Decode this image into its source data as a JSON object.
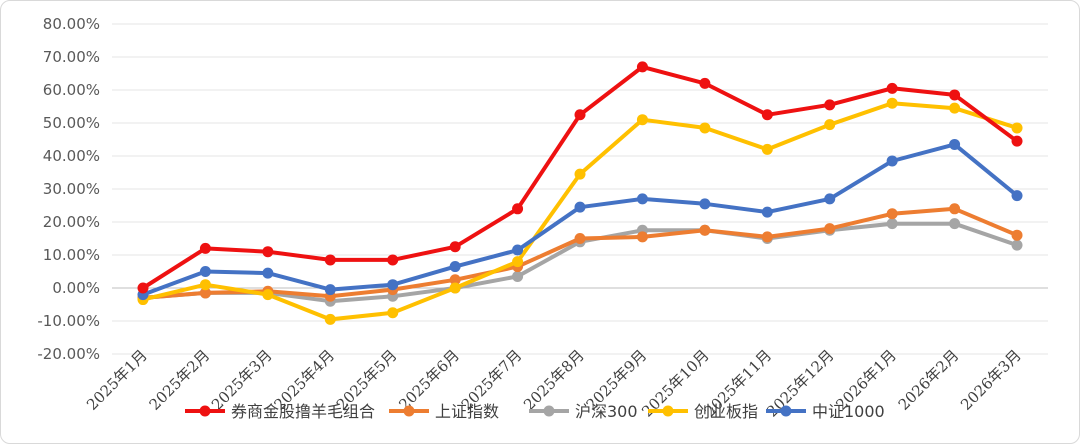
{
  "chart_data": {
    "type": "line",
    "title": "",
    "xlabel": "",
    "ylabel": "",
    "ylim": [
      -20,
      80
    ],
    "y_step": 10,
    "y_tick_suffix": "%",
    "grid": "horizontal",
    "legend_position": "bottom",
    "categories": [
      "2025年1月",
      "2025年2月",
      "2025年3月",
      "2025年4月",
      "2025年5月",
      "2025年6月",
      "2025年7月",
      "2025年8月",
      "2025年9月",
      "2025年10月",
      "2025年11月",
      "2025年12月",
      "2026年1月",
      "2026年2月",
      "2026年3月"
    ],
    "series": [
      {
        "name": "券商金股撸羊毛组合",
        "color": "#ee1111",
        "values": [
          0,
          12,
          11,
          8.5,
          8.5,
          12.5,
          24,
          52.5,
          67,
          62,
          52.5,
          55.5,
          60.5,
          58.5,
          44.5
        ]
      },
      {
        "name": "上证指数",
        "color": "#ed7d31",
        "values": [
          -3,
          -1.5,
          -1,
          -2.5,
          -0.5,
          2.5,
          6.5,
          15,
          15.5,
          17.5,
          15.5,
          18,
          22.5,
          24,
          16
        ]
      },
      {
        "name": "沪深300",
        "color": "#a5a5a5",
        "values": [
          -3,
          -1.5,
          -1.5,
          -4,
          -2.5,
          0,
          3.5,
          14,
          17.5,
          17.5,
          15,
          17.5,
          19.5,
          19.5,
          13
        ]
      },
      {
        "name": "创业板指",
        "color": "#ffc000",
        "values": [
          -3.5,
          1,
          -2,
          -9.5,
          -7.5,
          0,
          8,
          34.5,
          51,
          48.5,
          42,
          49.5,
          56,
          54.5,
          48.5
        ]
      },
      {
        "name": "中证1000",
        "color": "#4472c4",
        "values": [
          -2,
          5,
          4.5,
          -0.5,
          1,
          6.5,
          11.5,
          24.5,
          27,
          25.5,
          23,
          27,
          38.5,
          43.5,
          28
        ]
      }
    ]
  }
}
